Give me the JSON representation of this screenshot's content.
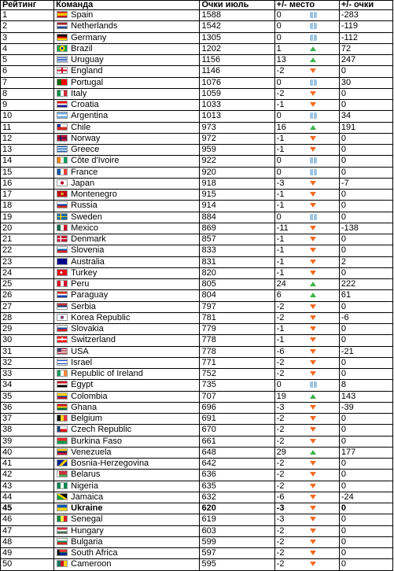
{
  "headers": {
    "rank": "Рейтинг",
    "team": "Команда",
    "points": "Очки июль",
    "rank_change": "+/- место",
    "points_change": "+/- очки"
  },
  "highlight_rank": "45",
  "rows": [
    {
      "rank": "1",
      "team": "Spain",
      "points": "1588",
      "chg": "0",
      "dir": "same",
      "pch": "-283",
      "flag": "linear-gradient(#c60b1e 0 25%, #ffc400 25% 75%, #c60b1e 75%)"
    },
    {
      "rank": "2",
      "team": "Netherlands",
      "points": "1542",
      "chg": "0",
      "dir": "same",
      "pch": "-119",
      "flag": "linear-gradient(#ae1c28 0 33%, #ffffff 33% 66%, #21468b 66%)"
    },
    {
      "rank": "3",
      "team": "Germany",
      "points": "1305",
      "chg": "0",
      "dir": "same",
      "pch": "-112",
      "flag": "linear-gradient(#000000 0 33%, #dd0000 33% 66%, #ffce00 66%)"
    },
    {
      "rank": "4",
      "team": "Brazil",
      "points": "1202",
      "chg": "1",
      "dir": "up",
      "pch": "72",
      "flag": "radial-gradient(circle, #002776 0 22%, #ffdf00 23% 48%, #009c3b 49%)"
    },
    {
      "rank": "5",
      "team": "Uruguay",
      "points": "1156",
      "chg": "13",
      "dir": "up",
      "pch": "247",
      "flag": "repeating-linear-gradient(#ffffff 0 1px, #0038a8 1px 2px)"
    },
    {
      "rank": "6",
      "team": "England",
      "points": "1146",
      "chg": "-2",
      "dir": "down",
      "pch": "0",
      "flag": "linear-gradient(90deg, transparent 0 42%, #ce1124 42% 58%, transparent 58%), linear-gradient(#ffffff 0 38%, #ce1124 38% 62%, #ffffff 62%)"
    },
    {
      "rank": "7",
      "team": "Portugal",
      "points": "1076",
      "chg": "0",
      "dir": "same",
      "pch": "30",
      "flag": "linear-gradient(90deg, #006600 0 40%, #ff0000 40%)"
    },
    {
      "rank": "8",
      "team": "Italy",
      "points": "1059",
      "chg": "-2",
      "dir": "down",
      "pch": "0",
      "flag": "linear-gradient(90deg, #009246 0 33%, #ffffff 33% 66%, #ce2b37 66%)"
    },
    {
      "rank": "9",
      "team": "Croatia",
      "points": "1033",
      "chg": "-1",
      "dir": "down",
      "pch": "0",
      "flag": "linear-gradient(#ff0000 0 33%, #ffffff 33% 66%, #171796 66%)"
    },
    {
      "rank": "10",
      "team": "Argentina",
      "points": "1013",
      "chg": "0",
      "dir": "same",
      "pch": "34",
      "flag": "linear-gradient(#74acdf 0 33%, #ffffff 33% 66%, #74acdf 66%)"
    },
    {
      "rank": "11",
      "team": "Chile",
      "points": "973",
      "chg": "16",
      "dir": "up",
      "pch": "191",
      "flag": "linear-gradient(90deg, #0039a6 0 35%, transparent 35%) 0 0/100% 50% no-repeat, linear-gradient(#ffffff 0 50%, #d52b1e 50%)"
    },
    {
      "rank": "12",
      "team": "Norway",
      "points": "972",
      "chg": "-1",
      "dir": "down",
      "pch": "0",
      "flag": "linear-gradient(90deg, transparent 0 30%, #00205b 30% 40%, transparent 40%), linear-gradient(#ba0c2f 0 42%, #00205b 42% 58%, #ba0c2f 58%)"
    },
    {
      "rank": "13",
      "team": "Greece",
      "points": "959",
      "chg": "-1",
      "dir": "down",
      "pch": "0",
      "flag": "repeating-linear-gradient(#0d5eaf 0 1px, #ffffff 1px 2px)"
    },
    {
      "rank": "14",
      "team": "Côte d'Ivoire",
      "points": "922",
      "chg": "0",
      "dir": "same",
      "pch": "0",
      "flag": "linear-gradient(90deg, #f77f00 0 33%, #ffffff 33% 66%, #009e60 66%)"
    },
    {
      "rank": "15",
      "team": "France",
      "points": "920",
      "chg": "0",
      "dir": "same",
      "pch": "0",
      "flag": "linear-gradient(90deg, #0055a4 0 33%, #ffffff 33% 66%, #ef4135 66%)"
    },
    {
      "rank": "16",
      "team": "Japan",
      "points": "918",
      "chg": "-3",
      "dir": "down",
      "pch": "-7",
      "flag": "radial-gradient(circle, #bc002d 0 30%, #ffffff 32%)"
    },
    {
      "rank": "17",
      "team": "Montenegro",
      "points": "915",
      "chg": "-1",
      "dir": "down",
      "pch": "0",
      "flag": "radial-gradient(circle, #d4af37 0 25%, #c40308 27%)"
    },
    {
      "rank": "18",
      "team": "Russia",
      "points": "914",
      "chg": "-1",
      "dir": "down",
      "pch": "0",
      "flag": "linear-gradient(#ffffff 0 33%, #0039a6 33% 66%, #d52b1e 66%)"
    },
    {
      "rank": "19",
      "team": "Sweden",
      "points": "884",
      "chg": "0",
      "dir": "same",
      "pch": "0",
      "flag": "linear-gradient(90deg, transparent 0 30%, #fecc00 30% 42%, transparent 42%), linear-gradient(#006aa7 0 42%, #fecc00 42% 58%, #006aa7 58%)"
    },
    {
      "rank": "20",
      "team": "Mexico",
      "points": "869",
      "chg": "-11",
      "dir": "down",
      "pch": "-138",
      "flag": "linear-gradient(90deg, #006847 0 33%, #ffffff 33% 66%, #ce1126 66%)"
    },
    {
      "rank": "21",
      "team": "Denmark",
      "points": "857",
      "chg": "-1",
      "dir": "down",
      "pch": "0",
      "flag": "linear-gradient(90deg, transparent 0 30%, #ffffff 30% 40%, transparent 40%), linear-gradient(#c60c30 0 42%, #ffffff 42% 58%, #c60c30 58%)"
    },
    {
      "rank": "22",
      "team": "Slovenia",
      "points": "833",
      "chg": "-1",
      "dir": "down",
      "pch": "0",
      "flag": "linear-gradient(#ffffff 0 33%, #005da4 33% 66%, #ed1c24 66%)"
    },
    {
      "rank": "23",
      "team": "Australia",
      "points": "831",
      "chg": "-1",
      "dir": "down",
      "pch": "2",
      "flag": "linear-gradient(#00008b 0 100%)"
    },
    {
      "rank": "24",
      "team": "Turkey",
      "points": "820",
      "chg": "-1",
      "dir": "down",
      "pch": "0",
      "flag": "radial-gradient(circle at 40% 50%, #ffffff 0 18%, #e30a17 20%)"
    },
    {
      "rank": "25",
      "team": "Peru",
      "points": "805",
      "chg": "24",
      "dir": "up",
      "pch": "222",
      "flag": "linear-gradient(90deg, #d91023 0 33%, #ffffff 33% 66%, #d91023 66%)"
    },
    {
      "rank": "26",
      "team": "Paraguay",
      "points": "804",
      "chg": "6",
      "dir": "up",
      "pch": "61",
      "flag": "linear-gradient(#d52b1e 0 33%, #ffffff 33% 66%, #0038a8 66%)"
    },
    {
      "rank": "27",
      "team": "Serbia",
      "points": "797",
      "chg": "-2",
      "dir": "down",
      "pch": "0",
      "flag": "linear-gradient(#c6363c 0 33%, #0c4076 33% 66%, #ffffff 66%)"
    },
    {
      "rank": "28",
      "team": "Korea Republic",
      "points": "781",
      "chg": "-2",
      "dir": "down",
      "pch": "-6",
      "flag": "radial-gradient(circle, #cd2e3a 0 20%, #0047a0 21% 28%, #ffffff 30%)"
    },
    {
      "rank": "29",
      "team": "Slovakia",
      "points": "779",
      "chg": "-1",
      "dir": "down",
      "pch": "0",
      "flag": "linear-gradient(#ffffff 0 33%, #0b4ea2 33% 66%, #ee1c25 66%)"
    },
    {
      "rank": "30",
      "team": "Switzerland",
      "points": "778",
      "chg": "-1",
      "dir": "down",
      "pch": "0",
      "flag": "linear-gradient(90deg, transparent 0 42%, #ffffff 42% 58%, transparent 58%) 0 20%/100% 60% no-repeat, linear-gradient(#ff0000 0 38%, #ffffff 38% 62%, #ff0000 62%)"
    },
    {
      "rank": "31",
      "team": "USA",
      "points": "778",
      "chg": "-6",
      "dir": "down",
      "pch": "-21",
      "flag": "linear-gradient(#3c3b6e 0 100%) 0 0/45% 55% no-repeat, repeating-linear-gradient(#b22234 0 1px, #ffffff 1px 2px)"
    },
    {
      "rank": "32",
      "team": "Israel",
      "points": "771",
      "chg": "-2",
      "dir": "down",
      "pch": "0",
      "flag": "linear-gradient(#ffffff 0 15%, #0038b8 15% 28%, #ffffff 28% 72%, #0038b8 72% 85%, #ffffff 85%)"
    },
    {
      "rank": "33",
      "team": "Republic of Ireland",
      "points": "752",
      "chg": "-2",
      "dir": "down",
      "pch": "0",
      "flag": "linear-gradient(90deg, #169b62 0 33%, #ffffff 33% 66%, #ff883e 66%)"
    },
    {
      "rank": "34",
      "team": "Egypt",
      "points": "735",
      "chg": "0",
      "dir": "same",
      "pch": "8",
      "flag": "linear-gradient(#ce1126 0 33%, #ffffff 33% 66%, #000000 66%)"
    },
    {
      "rank": "35",
      "team": "Colombia",
      "points": "707",
      "chg": "19",
      "dir": "up",
      "pch": "143",
      "flag": "linear-gradient(#fcd116 0 50%, #003893 50% 75%, #ce1126 75%)"
    },
    {
      "rank": "36",
      "team": "Ghana",
      "points": "696",
      "chg": "-3",
      "dir": "down",
      "pch": "-39",
      "flag": "linear-gradient(#ce1126 0 33%, #fcd116 33% 66%, #006b3f 66%)"
    },
    {
      "rank": "37",
      "team": "Belgium",
      "points": "691",
      "chg": "-2",
      "dir": "down",
      "pch": "0",
      "flag": "linear-gradient(90deg, #000000 0 33%, #fdda24 33% 66%, #ef3340 66%)"
    },
    {
      "rank": "38",
      "team": "Czech Republic",
      "points": "670",
      "chg": "-2",
      "dir": "down",
      "pch": "0",
      "flag": "linear-gradient(90deg, #11457e 0 30%, transparent 30%), linear-gradient(#ffffff 0 50%, #d7141a 50%)"
    },
    {
      "rank": "39",
      "team": "Burkina Faso",
      "points": "661",
      "chg": "-2",
      "dir": "down",
      "pch": "0",
      "flag": "linear-gradient(#ef2b2d 0 50%, #009e49 50%)"
    },
    {
      "rank": "40",
      "team": "Venezuela",
      "points": "648",
      "chg": "29",
      "dir": "up",
      "pch": "177",
      "flag": "linear-gradient(#ffcc00 0 33%, #00247d 33% 66%, #cf142b 66%)"
    },
    {
      "rank": "41",
      "team": "Bosnia-Herzegovina",
      "points": "642",
      "chg": "-2",
      "dir": "down",
      "pch": "0",
      "flag": "linear-gradient(135deg, #002395 0 45%, #fecb00 45% 70%, #002395 70%)"
    },
    {
      "rank": "42",
      "team": "Belarus",
      "points": "636",
      "chg": "-2",
      "dir": "down",
      "pch": "0",
      "flag": "linear-gradient(90deg, #ffffff 0 15%, transparent 15%), linear-gradient(#c8313e 0 66%, #4aa657 66%)"
    },
    {
      "rank": "43",
      "team": "Nigeria",
      "points": "635",
      "chg": "-2",
      "dir": "down",
      "pch": "0",
      "flag": "linear-gradient(90deg, #008751 0 33%, #ffffff 33% 66%, #008751 66%)"
    },
    {
      "rank": "44",
      "team": "Jamaica",
      "points": "632",
      "chg": "-6",
      "dir": "down",
      "pch": "-24",
      "flag": "linear-gradient(33deg, #009b3a 0 40%, #fed100 40% 60%, #000000 60%)"
    },
    {
      "rank": "45",
      "team": "Ukraine",
      "points": "620",
      "chg": "-3",
      "dir": "down",
      "pch": "0",
      "flag": "linear-gradient(#0057b7 0 50%, #ffd700 50%)"
    },
    {
      "rank": "46",
      "team": "Senegal",
      "points": "619",
      "chg": "-3",
      "dir": "down",
      "pch": "0",
      "flag": "linear-gradient(90deg, #00853f 0 33%, #fdef42 33% 66%, #e31b23 66%)"
    },
    {
      "rank": "47",
      "team": "Hungary",
      "points": "603",
      "chg": "-2",
      "dir": "down",
      "pch": "0",
      "flag": "linear-gradient(#ce2939 0 33%, #ffffff 33% 66%, #477050 66%)"
    },
    {
      "rank": "48",
      "team": "Bulgaria",
      "points": "599",
      "chg": "-2",
      "dir": "down",
      "pch": "0",
      "flag": "linear-gradient(#ffffff 0 33%, #00966e 33% 66%, #d62612 66%)"
    },
    {
      "rank": "49",
      "team": "South Africa",
      "points": "597",
      "chg": "-2",
      "dir": "down",
      "pch": "0",
      "flag": "linear-gradient(90deg, #000000 0 20%, transparent 20%), linear-gradient(#de3831 0 40%, #007a4d 40% 60%, #002395 60%)"
    },
    {
      "rank": "50",
      "team": "Cameroon",
      "points": "595",
      "chg": "-2",
      "dir": "down",
      "pch": "0",
      "flag": "linear-gradient(90deg, #007a5e 0 33%, #ce1126 33% 66%, #fcd116 66%)"
    }
  ]
}
